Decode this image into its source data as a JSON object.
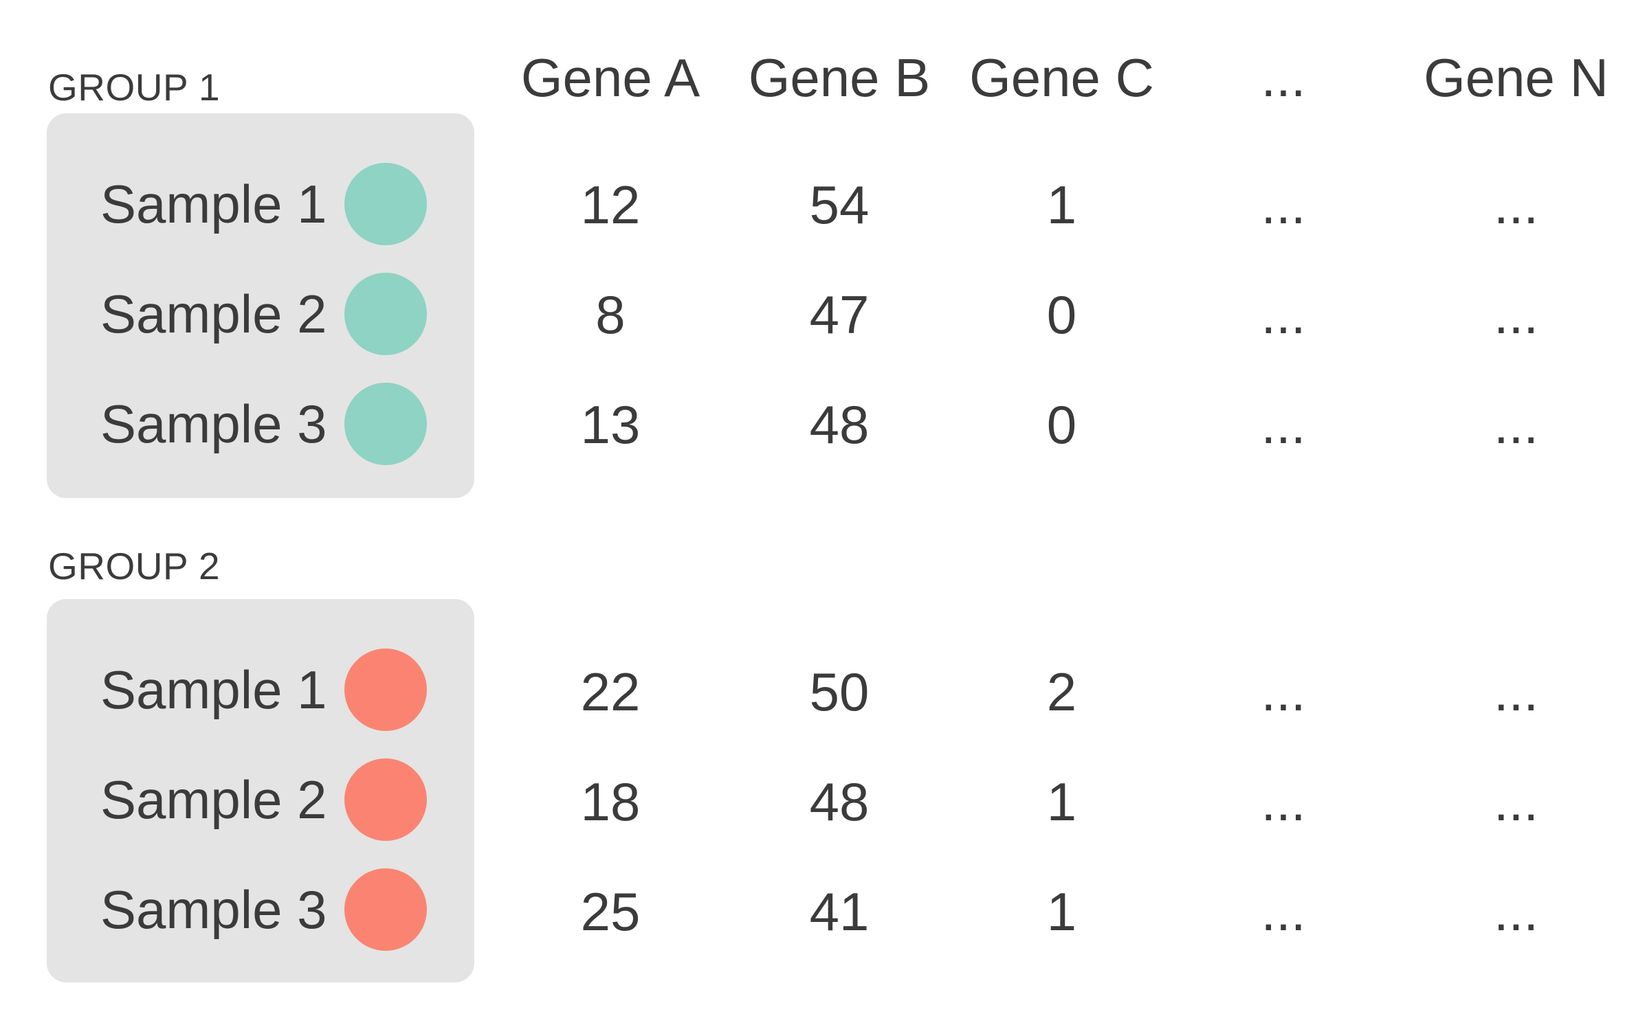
{
  "palette": {
    "group1_dot": "#8ED3C4",
    "group2_dot": "#FA8471",
    "box_bg": "#E4E4E4",
    "text": "#3B3B3B",
    "page_bg": "#FFFFFF"
  },
  "columns": [
    "Gene A",
    "Gene B",
    "Gene C",
    "...",
    "Gene N"
  ],
  "groups": [
    {
      "label": "GROUP 1",
      "dot_color": "#8ED3C4",
      "dot_style": "background:#8ED3C4",
      "samples": [
        {
          "name": "Sample 1",
          "values": [
            "12",
            "54",
            "1",
            "...",
            "..."
          ]
        },
        {
          "name": "Sample 2",
          "values": [
            "8",
            "47",
            "0",
            "...",
            "..."
          ]
        },
        {
          "name": "Sample 3",
          "values": [
            "13",
            "48",
            "0",
            "...",
            "..."
          ]
        }
      ]
    },
    {
      "label": "GROUP 2",
      "dot_color": "#FA8471",
      "dot_style": "background:#FA8471",
      "samples": [
        {
          "name": "Sample 1",
          "values": [
            "22",
            "50",
            "2",
            "...",
            "..."
          ]
        },
        {
          "name": "Sample 2",
          "values": [
            "18",
            "48",
            "1",
            "...",
            "..."
          ]
        },
        {
          "name": "Sample 3",
          "values": [
            "25",
            "41",
            "1",
            "...",
            "..."
          ]
        }
      ]
    }
  ]
}
